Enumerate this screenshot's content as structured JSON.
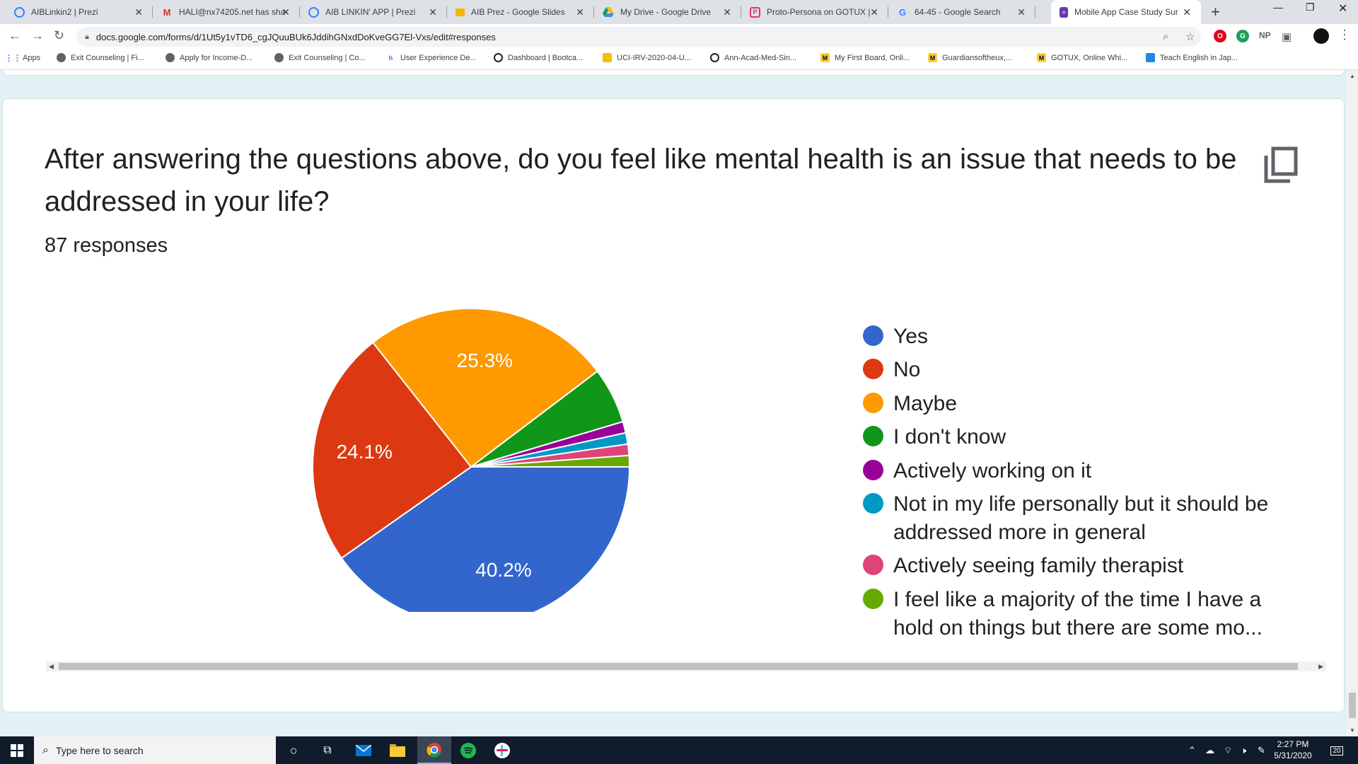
{
  "browser": {
    "tabs": [
      {
        "title": "AIBLinkin2 | Prezi",
        "icon": "prezi-icon",
        "active": false
      },
      {
        "title": "HALI@nx74205.net has sha",
        "icon": "gmail-icon",
        "active": false
      },
      {
        "title": "AIB LINKIN' APP | Prezi",
        "icon": "prezi-icon",
        "active": false
      },
      {
        "title": "AIB Prez - Google Slides",
        "icon": "slides-icon",
        "active": false
      },
      {
        "title": "My Drive - Google Drive",
        "icon": "drive-icon",
        "active": false
      },
      {
        "title": "Proto-Persona on GOTUX |",
        "icon": "gotux-icon",
        "active": false
      },
      {
        "title": "64-45 - Google Search",
        "icon": "google-icon",
        "active": false
      },
      {
        "title": "Mobile App Case Study Sur",
        "icon": "forms-icon",
        "active": true
      }
    ],
    "url": "docs.google.com/forms/d/1Ut5y1vTD6_cgJQuuBUk6JddihGNxdDoKveGG7El-Vxs/edit#responses",
    "bookmarks": [
      "Apps",
      "Exit Counseling | Fi...",
      "Apply for Income-D...",
      "Exit Counseling | Co...",
      "User Experience De...",
      "Dashboard | Bootca...",
      "UCI-IRV-2020-04-U...",
      "Ann-Acad-Med-Sin...",
      "My First Board, Onli...",
      "Guardiansoftheux,...",
      "GOTUX, Online Whi...",
      "Teach English in Jap..."
    ],
    "ext_np": "NP"
  },
  "question": {
    "title": "After answering the questions above, do you feel like mental health is an issue that needs to be addressed in your life?",
    "responses": "87 responses"
  },
  "chart_data": {
    "type": "pie",
    "title": "",
    "slices": [
      {
        "label": "Yes",
        "value": 40.2,
        "color": "#3366cc",
        "display": "40.2%"
      },
      {
        "label": "No",
        "value": 24.1,
        "color": "#dc3912",
        "display": "24.1%"
      },
      {
        "label": "Maybe",
        "value": 25.3,
        "color": "#ff9900",
        "display": "25.3%"
      },
      {
        "label": "I don't know",
        "value": 5.7,
        "color": "#109618",
        "display": ""
      },
      {
        "label": "Actively working on it",
        "value": 1.15,
        "color": "#990099",
        "display": ""
      },
      {
        "label": "Not in my life personally but it should be addressed more in general",
        "value": 1.15,
        "color": "#0099c6",
        "display": ""
      },
      {
        "label": "Actively seeing family therapist",
        "value": 1.15,
        "color": "#dd4477",
        "display": ""
      },
      {
        "label": "I feel like a majority of the time I have a hold on things but there are some mo...",
        "value": 1.15,
        "color": "#66aa00",
        "display": ""
      }
    ],
    "legend_position": "right"
  },
  "legend": [
    "Yes",
    "No",
    "Maybe",
    "I don't know",
    "Actively working on it",
    "Not in my life personally but it should be addressed more in general",
    "Actively seeing family therapist",
    "I feel like a majority of the time I have a hold on things but there are some mo..."
  ],
  "taskbar": {
    "search_placeholder": "Type here to search",
    "time": "2:27 PM",
    "date": "5/31/2020",
    "notifications": "20"
  }
}
